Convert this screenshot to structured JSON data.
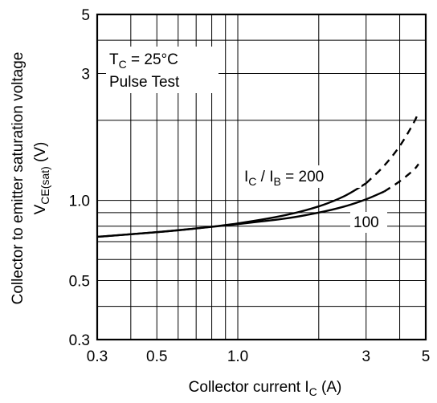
{
  "chart_data": {
    "type": "line",
    "title": "",
    "xlabel": {
      "text": "Collector current",
      "symbol": "I",
      "sub": "C",
      "unit": "(A)"
    },
    "ylabel": {
      "line1": "Collector to emitter saturation voltage",
      "symbol": "V",
      "sub": "CE(sat)",
      "unit": "(V)"
    },
    "x_scale": "log",
    "y_scale": "log",
    "xlim": [
      0.3,
      5
    ],
    "ylim": [
      0.3,
      5
    ],
    "x_ticks": [
      {
        "value": 0.3,
        "label": "0.3"
      },
      {
        "value": 0.5,
        "label": "0.5"
      },
      {
        "value": 1.0,
        "label": "1.0"
      },
      {
        "value": 3,
        "label": "3"
      },
      {
        "value": 5,
        "label": "5"
      }
    ],
    "y_ticks": [
      {
        "value": 0.3,
        "label": "0.3"
      },
      {
        "value": 0.5,
        "label": "0.5"
      },
      {
        "value": 1.0,
        "label": "1.0"
      },
      {
        "value": 3,
        "label": "3"
      },
      {
        "value": 5,
        "label": "5"
      }
    ],
    "x_grid": [
      0.4,
      0.5,
      0.6,
      0.7,
      0.8,
      0.9,
      1,
      2,
      3,
      4
    ],
    "y_grid": [
      0.4,
      0.5,
      0.6,
      0.7,
      0.8,
      0.9,
      1,
      2,
      3,
      4
    ],
    "grid": true,
    "conditions": [
      {
        "symbol": "T",
        "sub": "C",
        "text": " = 25°C"
      },
      {
        "text": "Pulse Test"
      }
    ],
    "series": [
      {
        "name": "200",
        "label_parts": {
          "symA": "I",
          "subA": "C",
          "mid": " / ",
          "symB": "I",
          "subB": "B",
          "tail": " = 200"
        },
        "solid": {
          "x": [
            0.3,
            0.5,
            0.7,
            1.0,
            1.5,
            2.0,
            2.5,
            3.0
          ],
          "y": [
            0.73,
            0.76,
            0.785,
            0.82,
            0.88,
            0.95,
            1.04,
            1.16
          ]
        },
        "dashed": {
          "x": [
            3.0,
            3.5,
            4.0,
            4.5,
            4.7
          ],
          "y": [
            1.16,
            1.35,
            1.6,
            1.95,
            2.15
          ]
        }
      },
      {
        "name": "100",
        "label_parts": {
          "tail": "100"
        },
        "solid": {
          "x": [
            0.3,
            0.5,
            0.7,
            1.0,
            1.5,
            2.0,
            2.5,
            3.0,
            3.5
          ],
          "y": [
            0.73,
            0.76,
            0.785,
            0.815,
            0.855,
            0.9,
            0.95,
            1.01,
            1.08
          ]
        },
        "dashed": {
          "x": [
            3.5,
            4.0,
            4.5,
            4.7
          ],
          "y": [
            1.08,
            1.18,
            1.3,
            1.37
          ]
        }
      }
    ]
  }
}
